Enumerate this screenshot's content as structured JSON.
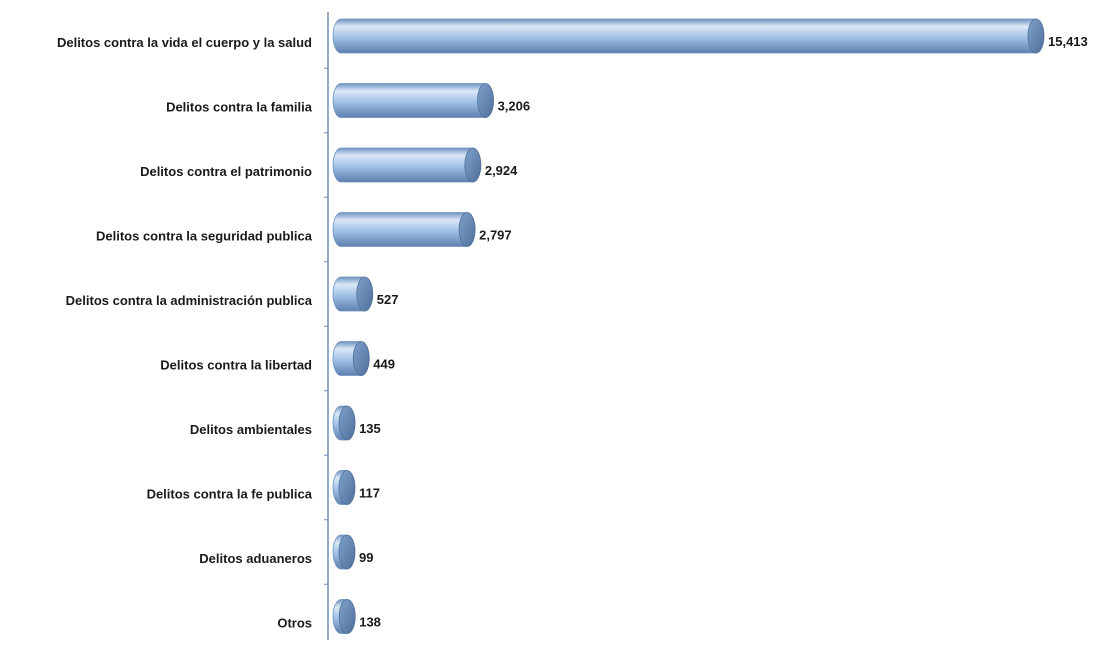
{
  "colors": {
    "bar_light": "#dbe8f7",
    "bar_mid": "#9fc0e6",
    "bar_dark": "#6f93c0",
    "bar_cap": "#5f7fae",
    "bar_cap_dark": "#4f6f9a",
    "axis_line": "#6d8db9",
    "text": "#1a1a1a"
  },
  "chart_data": {
    "type": "bar",
    "orientation": "horizontal",
    "bar_style": "cylinder",
    "categories": [
      "Delitos contra la vida el cuerpo y la salud",
      "Delitos contra la familia",
      "Delitos contra el patrimonio",
      "Delitos contra la seguridad publica",
      "Delitos contra la administración publica",
      "Delitos contra la libertad",
      "Delitos ambientales",
      "Delitos contra la fe publica",
      "Delitos aduaneros",
      "Otros"
    ],
    "values": [
      15413,
      3206,
      2924,
      2797,
      527,
      449,
      135,
      117,
      99,
      138
    ],
    "value_labels": [
      "15,413",
      "3,206",
      "2,924",
      "2,797",
      "527",
      "449",
      "135",
      "117",
      "99",
      "138"
    ],
    "xlim": [
      0,
      15413
    ],
    "grid": false,
    "legend": "none"
  }
}
